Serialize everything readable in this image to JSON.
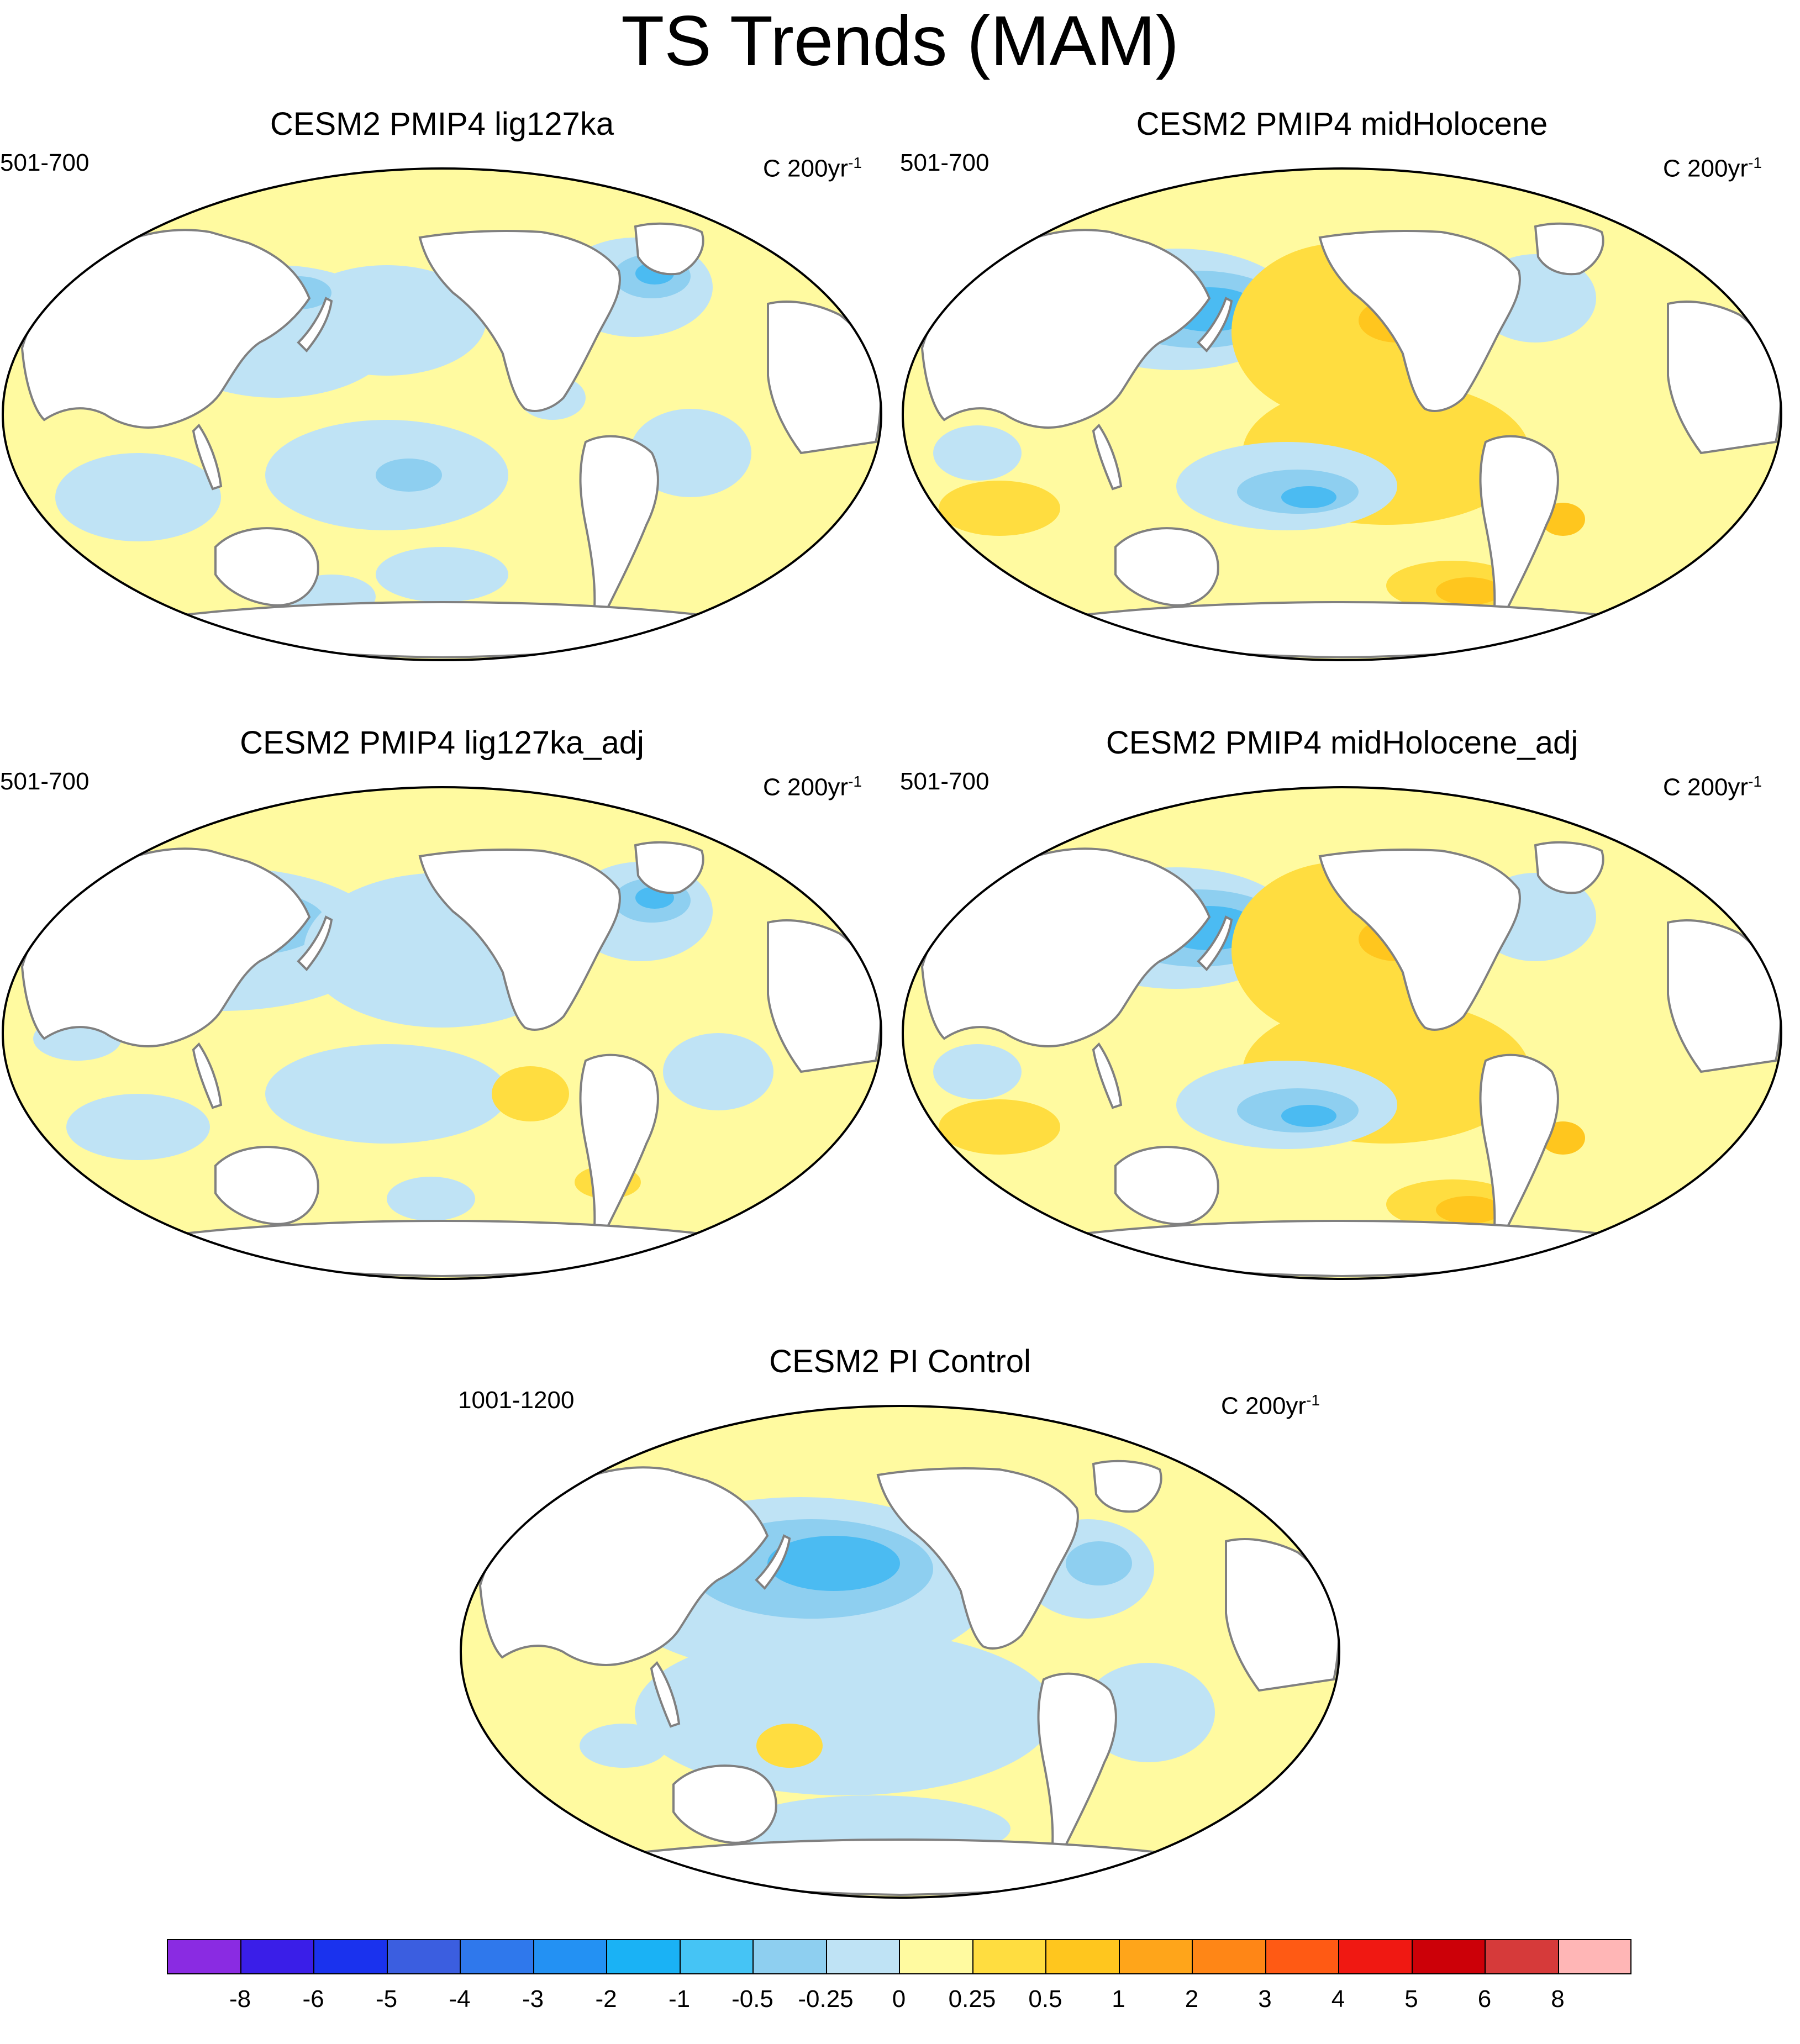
{
  "title": "TS Trends (MAM)",
  "colors": {
    "ocean_background": "#fffaa0",
    "neg_025": "#bfe3f5",
    "neg_05": "#8ecff0",
    "neg_1": "#4bbbf2",
    "neg_2": "#2a9af0",
    "pos_05": "#ffdd40",
    "pos_1": "#ffc61e",
    "land": "#ffffff",
    "coast": "#808080"
  },
  "panels": [
    {
      "title": "CESM2 PMIP4 lig127ka",
      "period": "501-700",
      "units_prefix": "C 200yr",
      "units_exp": "-1"
    },
    {
      "title": "CESM2 PMIP4 midHolocene",
      "period": "501-700",
      "units_prefix": "C 200yr",
      "units_exp": "-1"
    },
    {
      "title": "CESM2 PMIP4 lig127ka_adj",
      "period": "501-700",
      "units_prefix": "C 200yr",
      "units_exp": "-1"
    },
    {
      "title": "CESM2 PMIP4 midHolocene_adj",
      "period": "501-700",
      "units_prefix": "C 200yr",
      "units_exp": "-1"
    },
    {
      "title": "CESM2 PI Control",
      "period": "1001-1200",
      "units_prefix": "C 200yr",
      "units_exp": "-1"
    }
  ],
  "colorbar": {
    "labels": [
      "-8",
      "-6",
      "-5",
      "-4",
      "-3",
      "-2",
      "-1",
      "-0.5",
      "-0.25",
      "0",
      "0.25",
      "0.5",
      "1",
      "2",
      "3",
      "4",
      "5",
      "6",
      "8"
    ],
    "colors": [
      "#8a2be2",
      "#3a1ee8",
      "#1a32ee",
      "#3b5ee0",
      "#2f78ec",
      "#2391f3",
      "#1ab2f5",
      "#45c4f5",
      "#8ecff0",
      "#bfe3f5",
      "#fffaa0",
      "#ffdd40",
      "#ffc61e",
      "#ffa51a",
      "#ff8616",
      "#ff5a14",
      "#f01812",
      "#cc0008",
      "#d63a3a",
      "#ffb6b6"
    ]
  }
}
